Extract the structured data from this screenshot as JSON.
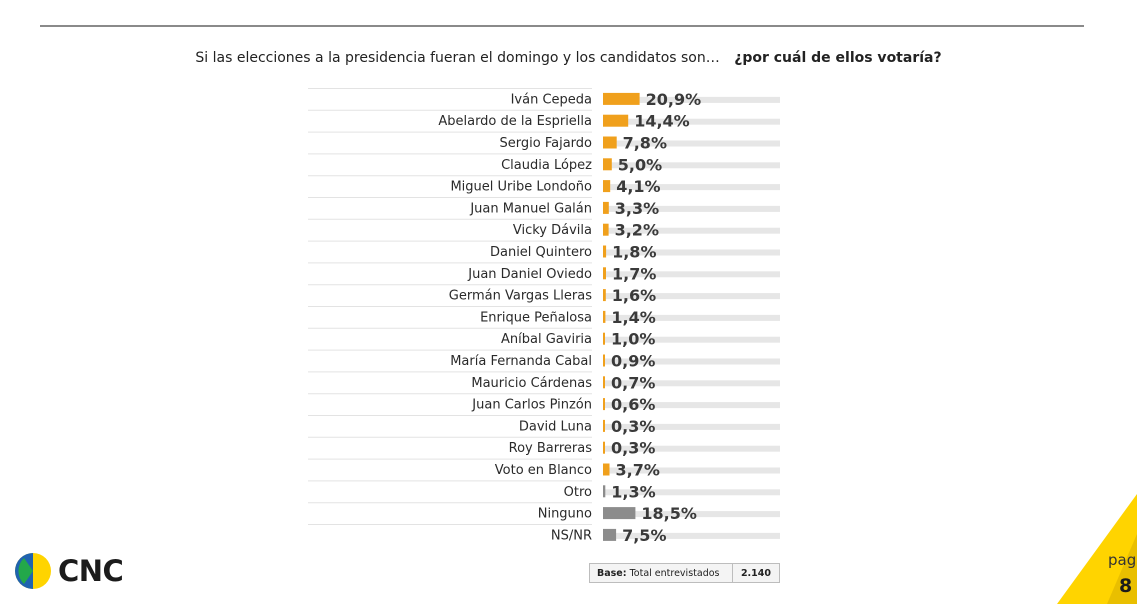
{
  "question": {
    "text": "Si las elecciones a la presidencia fueran el domingo y los candidatos son…",
    "bold": "¿por cuál de ellos votaría?"
  },
  "chart_data": {
    "type": "bar",
    "orientation": "horizontal",
    "categories": [
      "Iván Cepeda",
      "Abelardo de la Espriella",
      "Sergio Fajardo",
      "Claudia López",
      "Miguel Uribe Londoño",
      "Juan Manuel Galán",
      "Vicky Dávila",
      "Daniel Quintero",
      "Juan Daniel Oviedo",
      "Germán Vargas Lleras",
      "Enrique Peñalosa",
      "Aníbal Gaviria",
      "María Fernanda Cabal",
      "Mauricio Cárdenas",
      "Juan Carlos Pinzón",
      "David Luna",
      "Roy Barreras",
      "Voto en Blanco",
      "Otro",
      "Ninguno",
      "NS/NR"
    ],
    "values": [
      20.9,
      14.4,
      7.8,
      5.0,
      4.1,
      3.3,
      3.2,
      1.8,
      1.7,
      1.6,
      1.4,
      1.0,
      0.9,
      0.7,
      0.6,
      0.3,
      0.3,
      3.7,
      1.3,
      18.5,
      7.5
    ],
    "labels": [
      "20,9%",
      "14,4%",
      "7,8%",
      "5,0%",
      "4,1%",
      "3,3%",
      "3,2%",
      "1,8%",
      "1,7%",
      "1,6%",
      "1,4%",
      "1,0%",
      "0,9%",
      "0,7%",
      "0,6%",
      "0,3%",
      "0,3%",
      "3,7%",
      "1,3%",
      "18,5%",
      "7,5%"
    ],
    "bar_colors": [
      "#f0a01c",
      "#f0a01c",
      "#f0a01c",
      "#f0a01c",
      "#f0a01c",
      "#f0a01c",
      "#f0a01c",
      "#f0a01c",
      "#f0a01c",
      "#f0a01c",
      "#f0a01c",
      "#f0a01c",
      "#f0a01c",
      "#f0a01c",
      "#f0a01c",
      "#f0a01c",
      "#f0a01c",
      "#f0a01c",
      "#8c8c8c",
      "#8c8c8c",
      "#8c8c8c"
    ],
    "xlim": [
      0,
      100
    ],
    "grid": false,
    "legend": "none"
  },
  "colors": {
    "candidate": "#f0a01c",
    "other": "#8c8c8c",
    "track": "#e6e6e6",
    "brand_yellow": "#ffd400",
    "brand_blue": "#1f63b0",
    "brand_green": "#23a84a"
  },
  "footer": {
    "base_label": "Base:",
    "base_text": "Total entrevistados",
    "base_value": "2.140"
  },
  "brand": {
    "logo_text": "CNC",
    "logo_icon": "cnc-logo-icon"
  },
  "page": {
    "label": "pag",
    "number": "8"
  }
}
